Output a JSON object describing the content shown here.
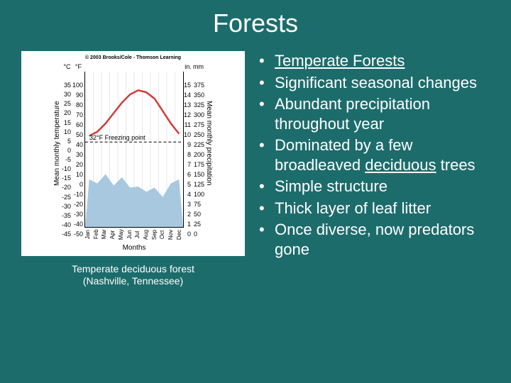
{
  "title": "Forests",
  "caption_line1": "Temperate deciduous forest",
  "caption_line2": "(Nashville, Tennessee)",
  "chart": {
    "copyright": "© 2003 Brooks/Cole - Thomson Learning",
    "left_axis_label": "Mean monthly temperature",
    "right_axis_label": "Mean monthly precipitation",
    "months_label": "Months",
    "unit_c": "°C",
    "unit_f": "°F",
    "unit_in": "in.",
    "unit_mm": "mm",
    "ticks_c": [
      "35",
      "30",
      "25",
      "20",
      "15",
      "10",
      "5",
      "0",
      "-5",
      "-10",
      "-15",
      "-20",
      "-25",
      "-30",
      "-35",
      "-40",
      "-45"
    ],
    "ticks_f": [
      "100",
      "90",
      "80",
      "70",
      "60",
      "50",
      "40",
      "30",
      "20",
      "10",
      "0",
      "-10",
      "-20",
      "-30",
      "-40",
      "-50"
    ],
    "ticks_in": [
      "15",
      "14",
      "13",
      "12",
      "11",
      "10",
      "9",
      "8",
      "7",
      "6",
      "5",
      "4",
      "3",
      "2",
      "1",
      "0"
    ],
    "ticks_mm": [
      "375",
      "350",
      "325",
      "300",
      "275",
      "250",
      "225",
      "200",
      "175",
      "150",
      "125",
      "100",
      "75",
      "50",
      "25",
      "0"
    ],
    "months": [
      "Jan",
      "Feb",
      "Mar",
      "Apr",
      "May",
      "Jun",
      "Jul",
      "Aug",
      "Sep",
      "Oct",
      "Nov",
      "Dec"
    ],
    "freezing_text": "32°F Freezing point",
    "temp_f": [
      38,
      42,
      50,
      60,
      70,
      78,
      82,
      80,
      74,
      62,
      50,
      40
    ],
    "precip_in": [
      4.6,
      4.2,
      5.1,
      4.0,
      4.8,
      3.8,
      3.9,
      3.4,
      3.8,
      2.9,
      4.2,
      4.6
    ],
    "temp_color": "#d13a3a",
    "precip_color": "#a8c8df",
    "freezing_color": "#000000",
    "f_min": -50,
    "f_max": 100,
    "in_min": 0,
    "in_max": 15,
    "plot_bg": "#ffffff"
  },
  "bullets": [
    {
      "text": "Temperate Forests",
      "underline": true
    },
    {
      "text": "Significant seasonal changes"
    },
    {
      "text": "Abundant precipitation throughout year"
    },
    {
      "html": "Dominated by a few broadleaved <span class=\"underline\">deciduous</span> trees"
    },
    {
      "text": "Simple structure"
    },
    {
      "text": "Thick layer of leaf litter"
    },
    {
      "text": "Once diverse, now predators gone"
    }
  ]
}
